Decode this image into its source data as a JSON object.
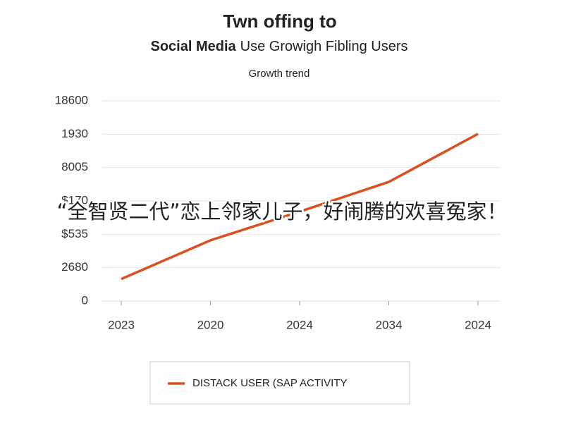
{
  "chart_data": {
    "type": "line",
    "title": "Twn offing to",
    "subtitle": [
      "Social Media",
      "Use Growigh Fibling Users"
    ],
    "axis_title": "Growth trend",
    "categories": [
      "2023",
      "2020",
      "2024",
      "2034",
      "2024"
    ],
    "series": [
      {
        "name": "DISTACK USER (SAP ACTIVITY",
        "color": "#d9501e",
        "values": [
          0.66,
          1.82,
          2.68,
          3.57,
          5.01
        ]
      }
    ],
    "ylim": [
      0,
      6
    ],
    "yticks": [
      0,
      {
        "value": 1,
        "label": "2680"
      },
      {
        "value": 2,
        "label": "$535"
      },
      {
        "value": 3,
        "label": "$170"
      },
      {
        "value": 4,
        "label": "8005"
      },
      {
        "value": 5,
        "label": "1930"
      },
      {
        "value": 6,
        "label": "18600"
      }
    ],
    "grid": true,
    "legend": "bottom",
    "overlay_text": "“全智贤二代”恋上邻家儿子，好闹腾的欢喜冤家！"
  }
}
